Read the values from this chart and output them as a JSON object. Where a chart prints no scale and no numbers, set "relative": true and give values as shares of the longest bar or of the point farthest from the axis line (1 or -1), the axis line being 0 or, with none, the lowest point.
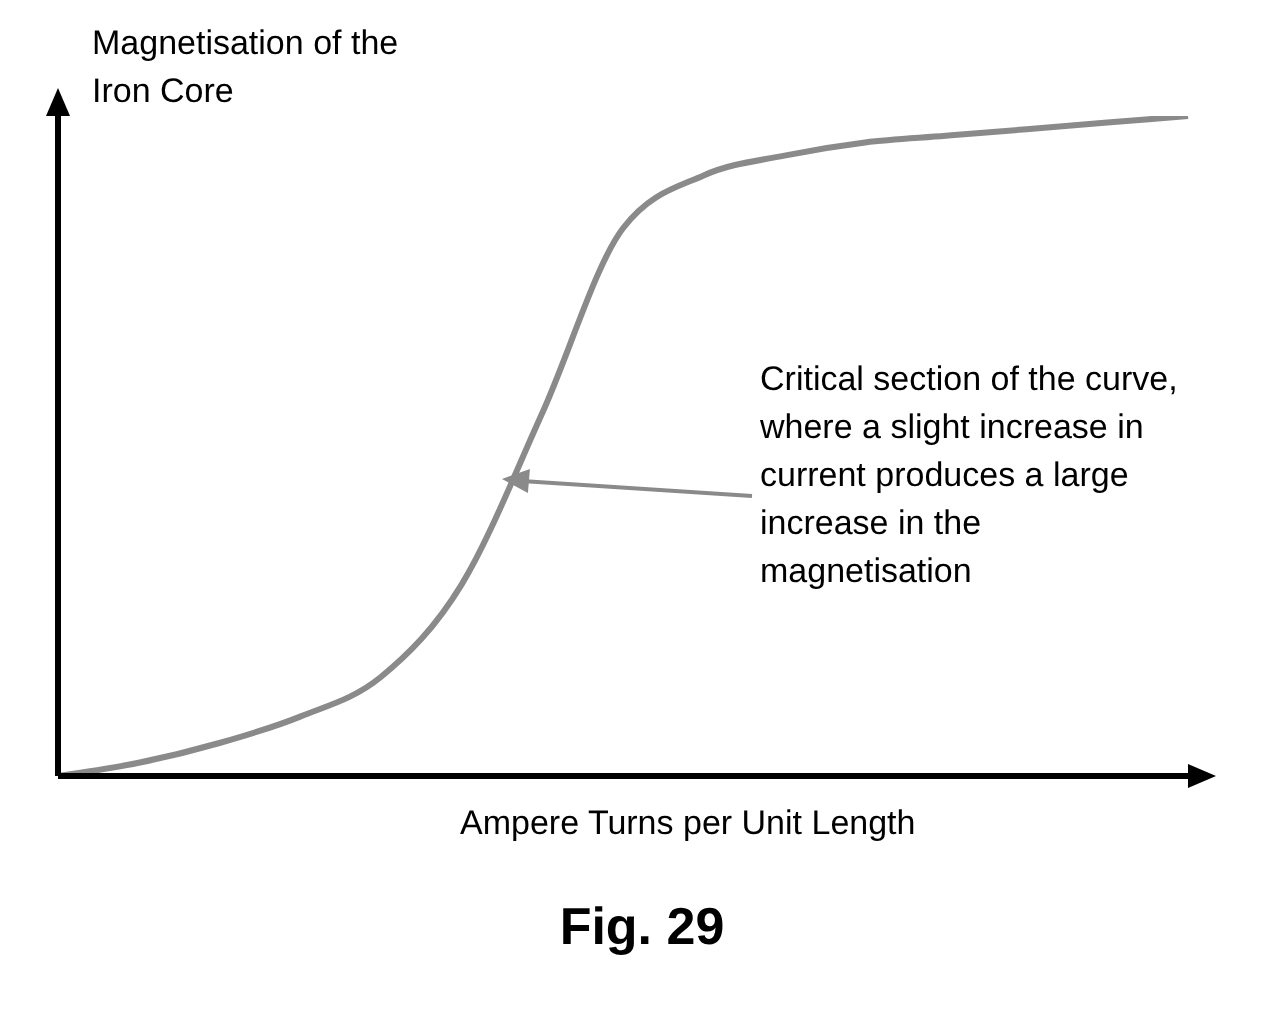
{
  "chart_data": {
    "type": "line",
    "title": "Fig. 29",
    "xlabel": "Ampere Turns per Unit Length",
    "ylabel": "Magnetisation of the Iron Core",
    "relative": true,
    "categories": [
      null,
      null,
      null,
      null,
      null,
      null,
      null,
      null,
      null,
      null,
      null,
      null,
      null,
      null,
      null
    ],
    "values": [
      0,
      0.02,
      0.05,
      0.09,
      0.15,
      0.29,
      0.55,
      0.83,
      0.91,
      0.94,
      0.96,
      0.97,
      0.98,
      0.99,
      1
    ],
    "color": "#8a8a8a",
    "marker": "none",
    "grid": false,
    "legend": false,
    "annotations": [
      "Critical section of the curve, where a slight increase in current produces a large increase in the magnetisation"
    ]
  }
}
